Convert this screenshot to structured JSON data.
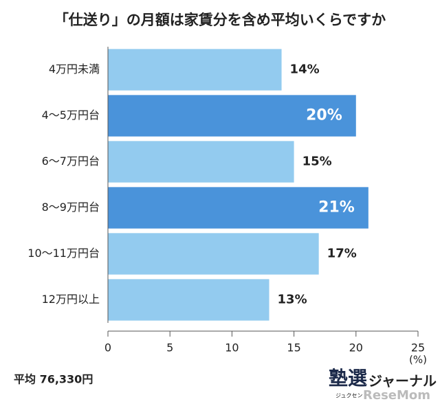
{
  "chart_data": {
    "type": "barh",
    "title": "「仕送り」の月額は家賃分を含め平均いくらですか",
    "categories": [
      "4万円未満",
      "4～5万円台",
      "6～7万円台",
      "8～9万円台",
      "10～11万円台",
      "12万円以上"
    ],
    "values": [
      14,
      20,
      15,
      21,
      17,
      13
    ],
    "value_labels": [
      "14%",
      "20%",
      "15%",
      "21%",
      "17%",
      "13%"
    ],
    "colors": [
      "#93cbef",
      "#4a93da",
      "#93cbef",
      "#4a93da",
      "#93cbef",
      "#93cbef"
    ],
    "label_inside": [
      false,
      true,
      false,
      true,
      false,
      false
    ],
    "xlim": [
      0,
      25
    ],
    "xticks": [
      0,
      5,
      10,
      15,
      20,
      25
    ],
    "xlabel": "(%)",
    "annotation": "平均 76,330円"
  },
  "logo": {
    "main": "塾選",
    "sub": "ジャーナル",
    "reading": "ジュクセン",
    "brand": "ReseMom"
  }
}
